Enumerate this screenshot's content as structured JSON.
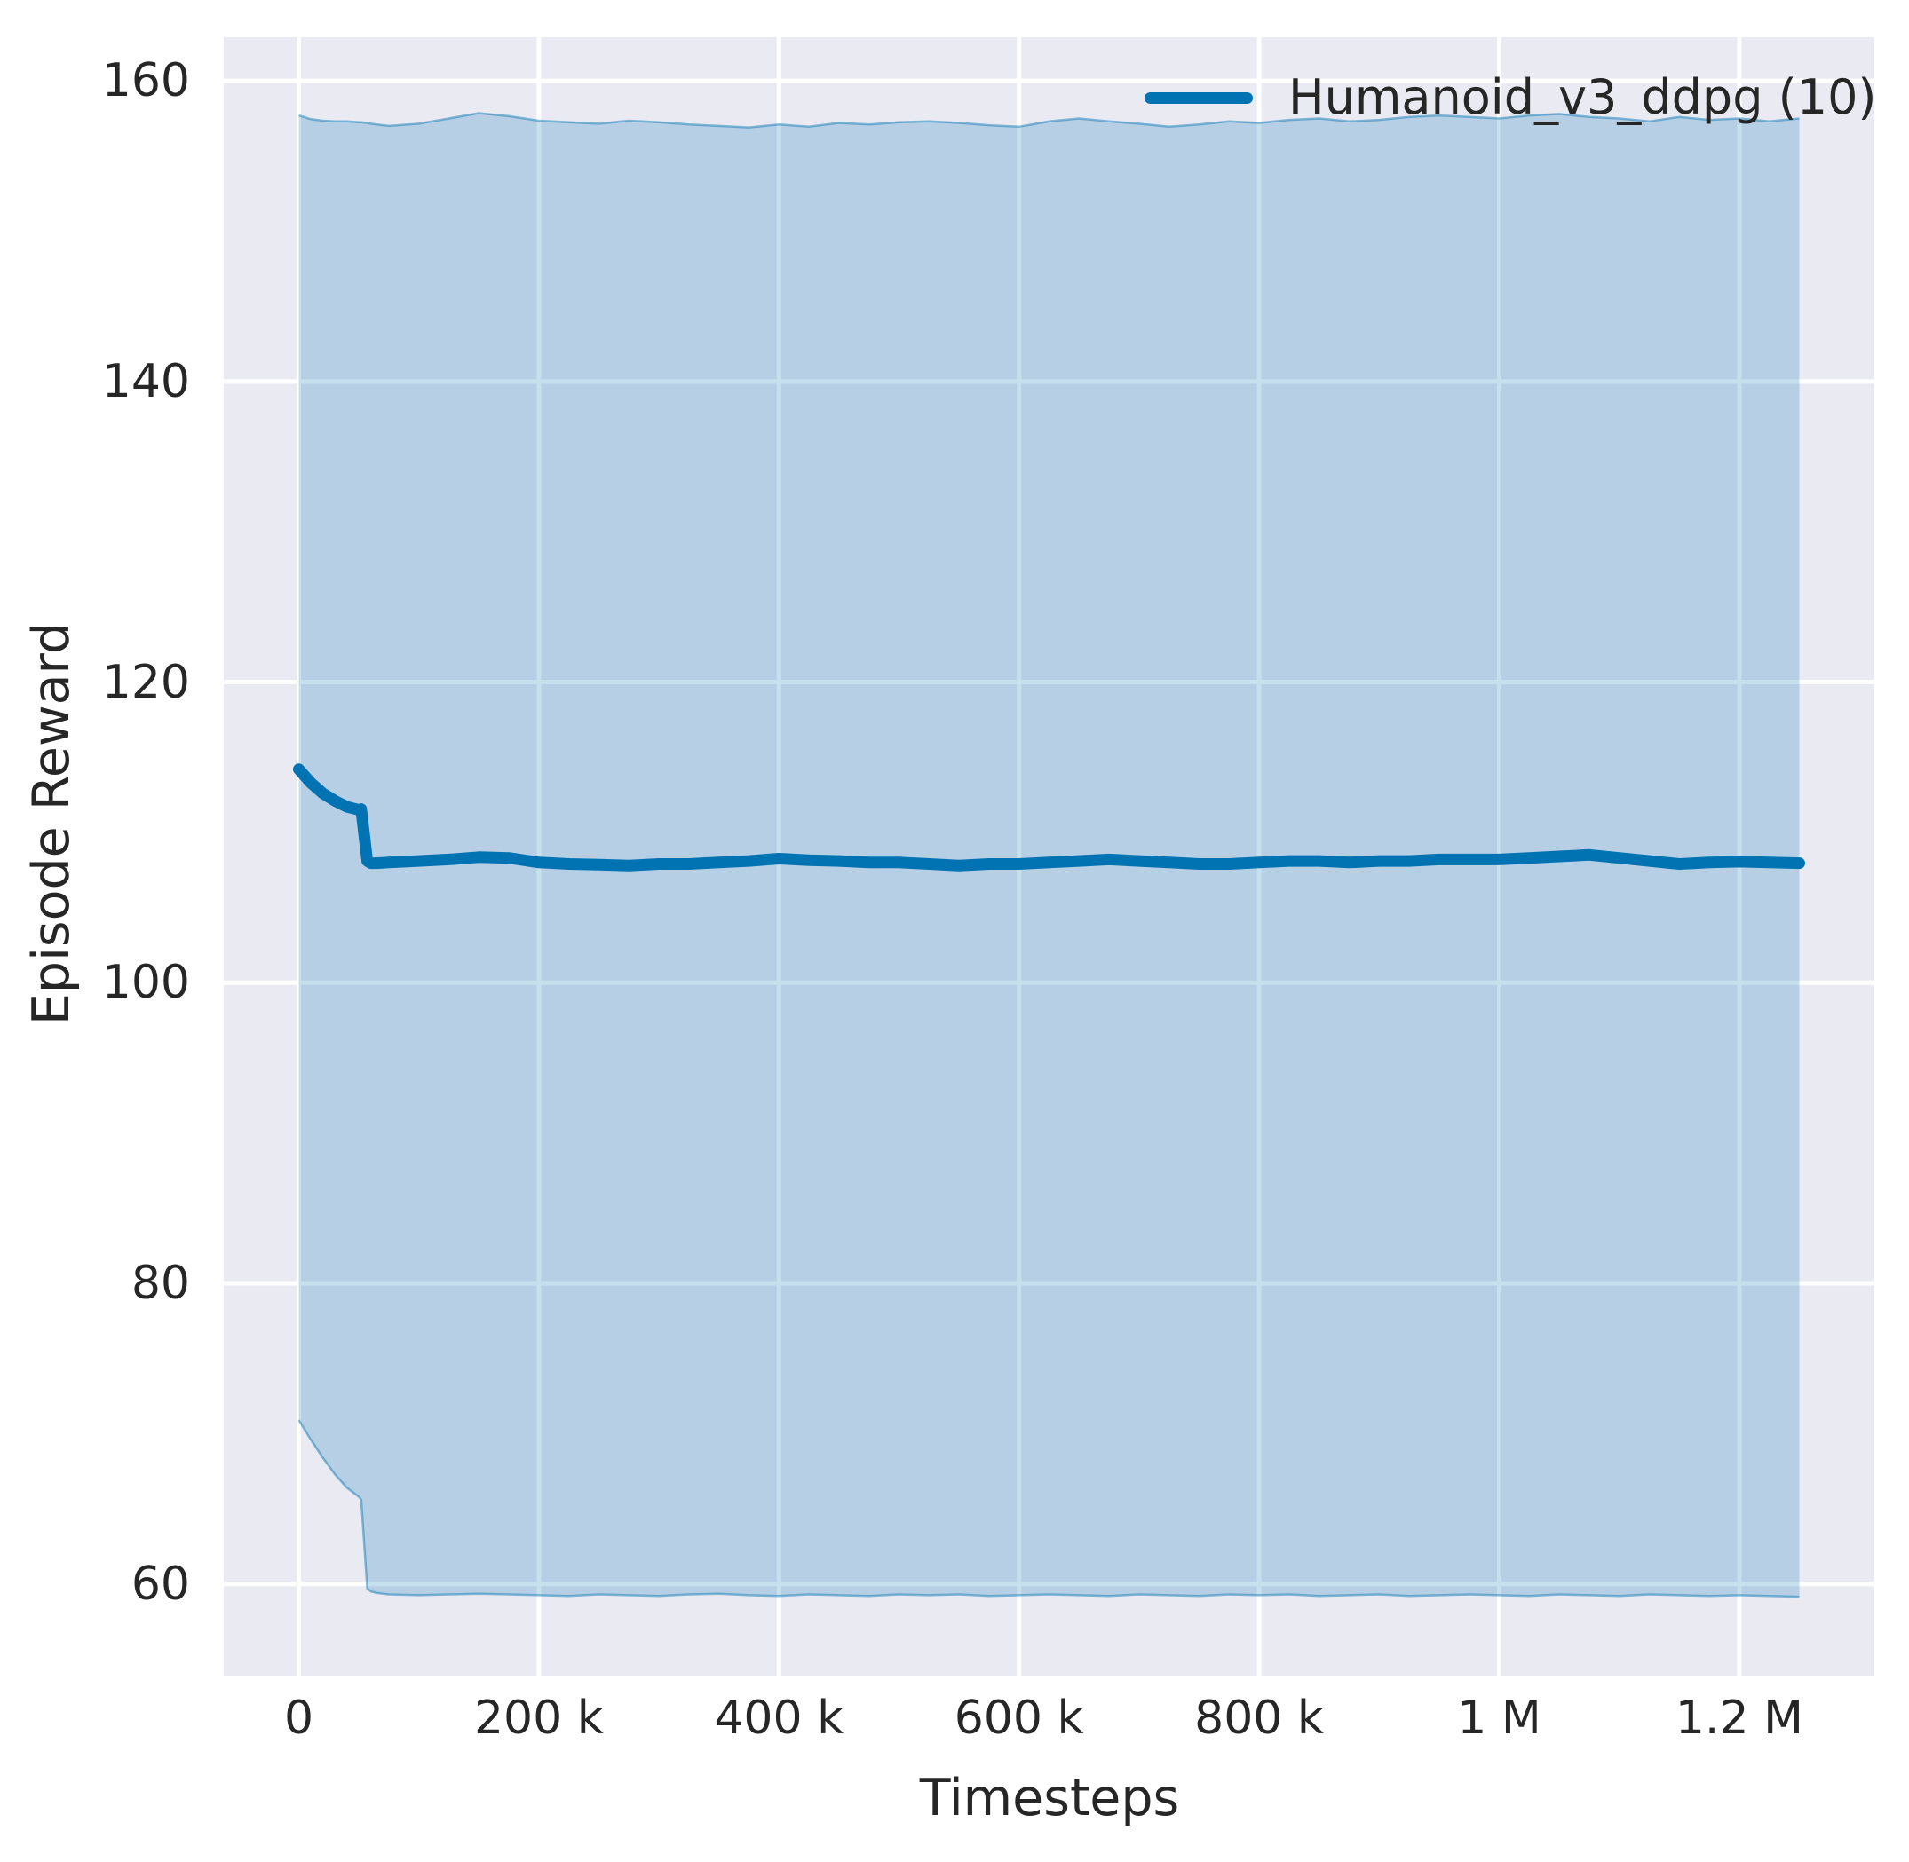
{
  "figure": {
    "xlabel": "Timesteps",
    "ylabel": "Episode Reward"
  },
  "chart_data": {
    "type": "line",
    "title": "",
    "xlabel": "Timesteps",
    "ylabel": "Episode Reward",
    "grid": true,
    "legend_position": "upper right",
    "background_color": "#eaeaf2",
    "gridline_color": "#ffffff",
    "band_alpha": 0.22,
    "xlim": [
      -62500,
      1312500
    ],
    "ylim": [
      53.9,
      162.9
    ],
    "xticks": {
      "values": [
        0,
        200000,
        400000,
        600000,
        800000,
        1000000,
        1200000
      ],
      "labels": [
        "0",
        "200 k",
        "400 k",
        "600 k",
        "800 k",
        "1 M",
        "1.2 M"
      ]
    },
    "yticks": {
      "values": [
        60,
        80,
        100,
        120,
        140,
        160
      ],
      "labels": [
        "60",
        "80",
        "100",
        "120",
        "140",
        "160"
      ]
    },
    "legend": [
      {
        "name": "Humanoid_v3_ddpg (10)",
        "color": "#0173b2"
      }
    ],
    "series": [
      {
        "name": "Humanoid_v3_ddpg (10)",
        "color": "#0173b2",
        "x": [
          0,
          10000,
          20000,
          30000,
          40000,
          50000,
          52000,
          57000,
          60000,
          65000,
          75000,
          100000,
          125000,
          150000,
          175000,
          200000,
          225000,
          250000,
          275000,
          300000,
          325000,
          350000,
          375000,
          400000,
          425000,
          450000,
          475000,
          500000,
          525000,
          550000,
          575000,
          600000,
          625000,
          650000,
          675000,
          700000,
          725000,
          750000,
          775000,
          800000,
          825000,
          850000,
          875000,
          900000,
          925000,
          950000,
          975000,
          1000000,
          1025000,
          1050000,
          1075000,
          1100000,
          1125000,
          1150000,
          1175000,
          1200000,
          1225000,
          1250000
        ],
        "mean": [
          114.2,
          113.3,
          112.6,
          112.1,
          111.7,
          111.5,
          111.55,
          108.1,
          107.95,
          107.95,
          108.0,
          108.1,
          108.2,
          108.35,
          108.3,
          108.0,
          107.9,
          107.85,
          107.8,
          107.9,
          107.9,
          108.0,
          108.1,
          108.25,
          108.15,
          108.1,
          108.0,
          108.0,
          107.9,
          107.8,
          107.9,
          107.9,
          108.0,
          108.1,
          108.2,
          108.1,
          108.0,
          107.9,
          107.9,
          108.0,
          108.1,
          108.1,
          108.0,
          108.1,
          108.1,
          108.2,
          108.2,
          108.2,
          108.3,
          108.4,
          108.5,
          108.3,
          108.1,
          107.9,
          108.0,
          108.05,
          108.0,
          107.95
        ],
        "band_high": [
          157.7,
          157.45,
          157.35,
          157.3,
          157.3,
          157.25,
          157.25,
          157.2,
          157.15,
          157.1,
          157.0,
          157.15,
          157.5,
          157.85,
          157.65,
          157.35,
          157.25,
          157.15,
          157.35,
          157.25,
          157.1,
          157.0,
          156.9,
          157.1,
          156.95,
          157.2,
          157.1,
          157.25,
          157.3,
          157.2,
          157.05,
          156.95,
          157.3,
          157.5,
          157.3,
          157.15,
          156.95,
          157.1,
          157.3,
          157.2,
          157.4,
          157.5,
          157.3,
          157.4,
          157.6,
          157.7,
          157.6,
          157.5,
          157.7,
          157.8,
          157.6,
          157.5,
          157.3,
          157.6,
          157.4,
          157.5,
          157.3,
          157.5
        ],
        "band_low": [
          70.9,
          69.6,
          68.4,
          67.3,
          66.4,
          65.8,
          65.6,
          59.7,
          59.5,
          59.4,
          59.3,
          59.25,
          59.3,
          59.35,
          59.3,
          59.25,
          59.2,
          59.3,
          59.25,
          59.2,
          59.3,
          59.35,
          59.25,
          59.2,
          59.3,
          59.25,
          59.2,
          59.3,
          59.25,
          59.3,
          59.2,
          59.25,
          59.3,
          59.25,
          59.2,
          59.3,
          59.25,
          59.2,
          59.3,
          59.25,
          59.3,
          59.2,
          59.25,
          59.3,
          59.2,
          59.25,
          59.3,
          59.25,
          59.2,
          59.3,
          59.25,
          59.2,
          59.3,
          59.25,
          59.2,
          59.25,
          59.2,
          59.15
        ]
      }
    ]
  }
}
